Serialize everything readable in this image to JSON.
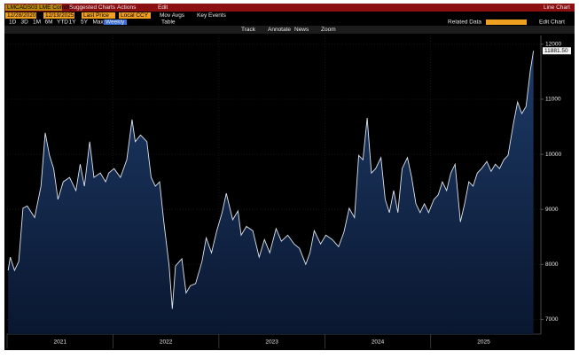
{
  "header": {
    "ticker": "LMCADS03 LME Comdty",
    "menus": [
      "Suggested Charts",
      "Actions",
      "Edit"
    ],
    "view": "Line Chart"
  },
  "controls": {
    "start_date": "12/28/2020",
    "end_date": "12/19/2025",
    "field": "Last Price",
    "currency": "Local CCY",
    "options": [
      "Mov Avgs",
      "Key Events"
    ],
    "ranges": [
      "1D",
      "3D",
      "1M",
      "6M",
      "YTD",
      "1Y",
      "5Y",
      "Max"
    ],
    "frequency": "Weekly",
    "table": "Table",
    "tools": [
      "Track",
      "Annotate",
      "News",
      "Zoom"
    ],
    "related": "Related Data",
    "edit_chart": "Edit Chart"
  },
  "chart_data": {
    "type": "line",
    "color": "#dde5ee",
    "x": [
      2021.01,
      2021.03,
      2021.07,
      2021.11,
      2021.15,
      2021.19,
      2021.26,
      2021.32,
      2021.36,
      2021.4,
      2021.44,
      2021.48,
      2021.53,
      2021.59,
      2021.65,
      2021.69,
      2021.73,
      2021.78,
      2021.82,
      2021.88,
      2021.93,
      2021.96,
      2022.01,
      2022.07,
      2022.13,
      2022.18,
      2022.21,
      2022.26,
      2022.32,
      2022.36,
      2022.4,
      2022.44,
      2022.48,
      2022.53,
      2022.56,
      2022.59,
      2022.65,
      2022.69,
      2022.73,
      2022.78,
      2022.84,
      2022.88,
      2022.93,
      2022.98,
      2023.03,
      2023.07,
      2023.13,
      2023.18,
      2023.21,
      2023.26,
      2023.32,
      2023.38,
      2023.43,
      2023.48,
      2023.54,
      2023.59,
      2023.65,
      2023.71,
      2023.76,
      2023.82,
      2023.86,
      2023.9,
      2023.96,
      2024.01,
      2024.07,
      2024.13,
      2024.18,
      2024.23,
      2024.28,
      2024.32,
      2024.36,
      2024.4,
      2024.44,
      2024.48,
      2024.53,
      2024.57,
      2024.61,
      2024.65,
      2024.69,
      2024.73,
      2024.78,
      2024.82,
      2024.86,
      2024.9,
      2024.94,
      2024.98,
      2025.03,
      2025.07,
      2025.11,
      2025.15,
      2025.19,
      2025.23,
      2025.28,
      2025.32,
      2025.36,
      2025.4,
      2025.44,
      2025.48,
      2025.53,
      2025.57,
      2025.61,
      2025.65,
      2025.69,
      2025.73,
      2025.78,
      2025.82,
      2025.86,
      2025.9,
      2025.94,
      2025.97
    ],
    "values": [
      7890,
      8130,
      7890,
      8050,
      9020,
      9060,
      8850,
      9420,
      10390,
      9980,
      9740,
      9180,
      9500,
      9580,
      9340,
      9820,
      9420,
      10230,
      9580,
      9660,
      9500,
      9660,
      9740,
      9580,
      9900,
      10630,
      10230,
      10350,
      10230,
      9580,
      9420,
      9500,
      8770,
      7970,
      7190,
      7970,
      8100,
      7480,
      7610,
      7650,
      8050,
      8480,
      8210,
      8610,
      8940,
      9290,
      8810,
      8970,
      8530,
      8690,
      8610,
      8130,
      8450,
      8210,
      8650,
      8420,
      8530,
      8370,
      8290,
      8000,
      8210,
      8610,
      8370,
      8530,
      8450,
      8320,
      8580,
      9020,
      8850,
      9980,
      9900,
      10660,
      9660,
      9740,
      9940,
      9180,
      8940,
      9340,
      8940,
      9740,
      9940,
      9580,
      9100,
      8940,
      9100,
      8940,
      9180,
      9260,
      9500,
      9340,
      9660,
      9820,
      8770,
      9100,
      9500,
      9420,
      9660,
      9740,
      9870,
      9690,
      9820,
      9740,
      9900,
      9980,
      10550,
      10950,
      10740,
      10870,
      11520,
      11881.5
    ],
    "last_price": {
      "value": 11881.5,
      "label": "11881.50"
    },
    "xlim": [
      2021,
      2026.04
    ],
    "xticks": [
      2021,
      2022,
      2023,
      2024,
      2025
    ],
    "ylim": [
      6730,
      12160
    ],
    "yticks": [
      7000,
      8000,
      9000,
      10000,
      11000,
      12000
    ],
    "grid": true
  }
}
